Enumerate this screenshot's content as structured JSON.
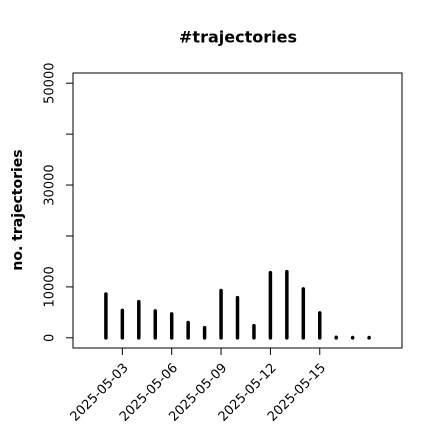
{
  "chart_data": {
    "type": "bar",
    "title": "#trajectories",
    "y_label": "no. trajectories",
    "x": [
      "2025-05-02",
      "2025-05-03",
      "2025-05-04",
      "2025-05-05",
      "2025-05-06",
      "2025-05-07",
      "2025-05-08",
      "2025-05-09",
      "2025-05-10",
      "2025-05-11",
      "2025-05-12",
      "2025-05-13",
      "2025-05-14",
      "2025-05-15",
      "2025-05-16",
      "2025-05-17",
      "2025-05-18"
    ],
    "values": [
      8600,
      5400,
      7100,
      5300,
      4700,
      3000,
      2000,
      9300,
      7900,
      2400,
      12800,
      13000,
      9600,
      4900,
      100,
      50,
      50
    ],
    "color": "#000000",
    "xlim": [
      "2025-04-30",
      "2025-05-20"
    ],
    "xticks": [
      "2025-05-03",
      "2025-05-06",
      "2025-05-09",
      "2025-05-12",
      "2025-05-15"
    ],
    "ylim": [
      -2000,
      52000
    ],
    "yticks": [
      0,
      10000,
      30000,
      50000
    ],
    "yminor": [
      20000,
      40000
    ]
  }
}
